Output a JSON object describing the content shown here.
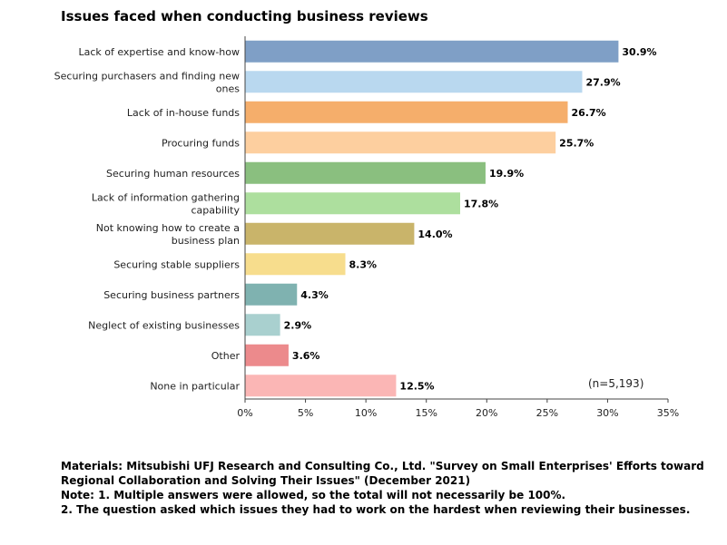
{
  "chart_data": {
    "type": "bar",
    "orientation": "horizontal",
    "title": "Issues faced when conducting business reviews",
    "categories": [
      [
        "Lack of expertise and know-how"
      ],
      [
        "Securing purchasers and finding new",
        "ones"
      ],
      [
        "Lack of in-house funds"
      ],
      [
        "Procuring funds"
      ],
      [
        "Securing human resources"
      ],
      [
        "Lack of information gathering",
        "capability"
      ],
      [
        "Not knowing how to create a",
        "business plan"
      ],
      [
        "Securing stable suppliers"
      ],
      [
        "Securing business partners"
      ],
      [
        "Neglect of existing businesses"
      ],
      [
        "Other"
      ],
      [
        "None in particular"
      ]
    ],
    "values": [
      30.9,
      27.9,
      26.7,
      25.7,
      19.9,
      17.8,
      14.0,
      8.3,
      4.3,
      2.9,
      3.6,
      12.5
    ],
    "value_labels": [
      "30.9%",
      "27.9%",
      "26.7%",
      "25.7%",
      "19.9%",
      "17.8%",
      "14.0%",
      "8.3%",
      "4.3%",
      "2.9%",
      "3.6%",
      "12.5%"
    ],
    "colors": [
      "#7f9fc6",
      "#b9d8ef",
      "#f5ae6b",
      "#fdcf9f",
      "#8abf7f",
      "#addf9e",
      "#c9b46a",
      "#f7dd8d",
      "#7fb2b0",
      "#a9d0cf",
      "#ec8a8c",
      "#fbb6b5"
    ],
    "xlim": [
      0,
      35
    ],
    "xticks": [
      0,
      5,
      10,
      15,
      20,
      25,
      30,
      35
    ],
    "xtick_labels": [
      "0%",
      "5%",
      "10%",
      "15%",
      "20%",
      "25%",
      "30%",
      "35%"
    ],
    "annotation": "(n=5,193)",
    "grid": false,
    "xlabel": "",
    "ylabel": ""
  },
  "source_lines": [
    "Materials: Mitsubishi UFJ Research and Consulting Co., Ltd. \"Survey on Small Enterprises' Efforts toward",
    "Regional Collaboration and Solving Their Issues\" (December 2021)",
    "Note: 1. Multiple answers were allowed, so the total will not necessarily be 100%.",
    "2. The question asked which issues they had to work on the hardest when reviewing their businesses."
  ]
}
